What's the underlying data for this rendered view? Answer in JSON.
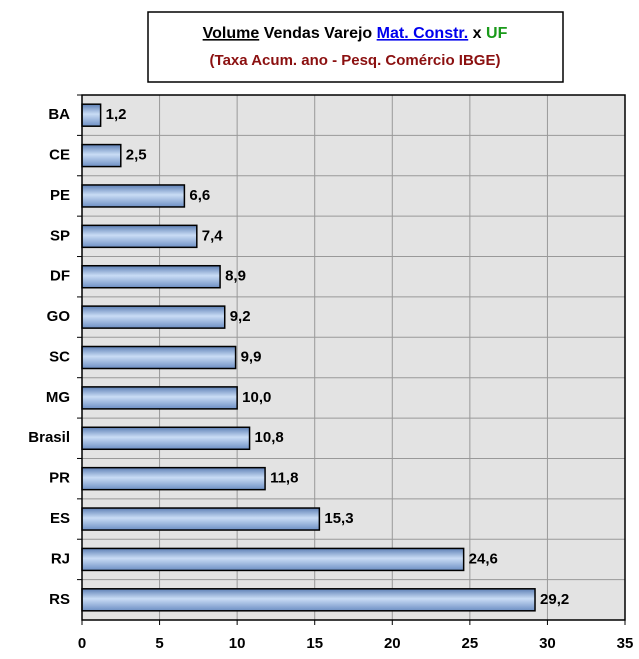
{
  "chart_data": {
    "type": "hbar",
    "title": [
      "Volume",
      "Vendas Varejo",
      "Mat. Constr.",
      "x",
      "UF"
    ],
    "subtitle": "(Taxa Acum. ano - Pesq. Comércio IBGE)",
    "categories": [
      "BA",
      "CE",
      "PE",
      "SP",
      "DF",
      "GO",
      "SC",
      "MG",
      "Brasil",
      "PR",
      "ES",
      "RJ",
      "RS"
    ],
    "values": [
      1.2,
      2.5,
      6.6,
      7.4,
      8.9,
      9.2,
      9.9,
      10.0,
      10.8,
      11.8,
      15.3,
      24.6,
      29.2
    ],
    "value_labels": [
      "1,2",
      "2,5",
      "6,6",
      "7,4",
      "8,9",
      "9,2",
      "9,9",
      "10,0",
      "10,8",
      "11,8",
      "15,3",
      "24,6",
      "29,2"
    ],
    "color": "#9dbbe6",
    "xlim": [
      0,
      35
    ],
    "xticks": [
      0,
      5,
      10,
      15,
      20,
      25,
      30,
      35
    ],
    "grid": true
  }
}
